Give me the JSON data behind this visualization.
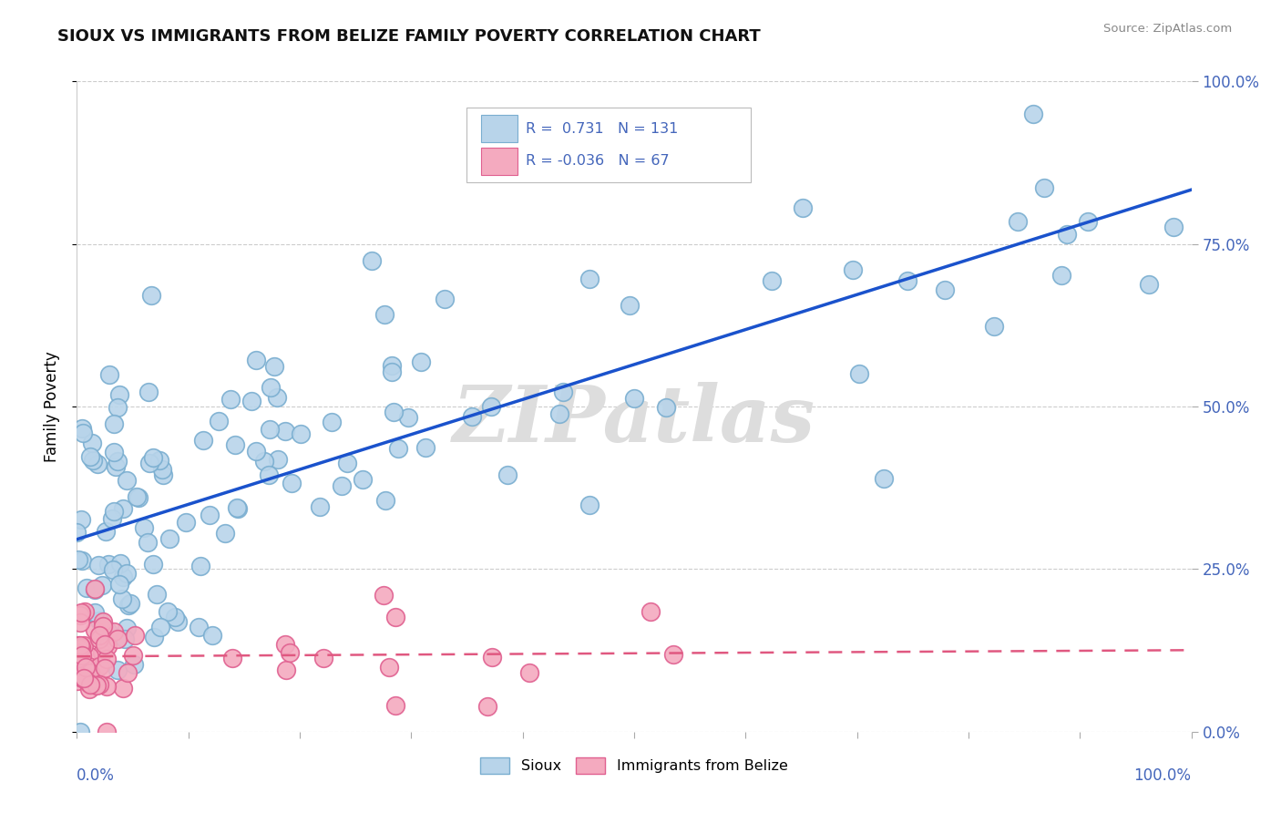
{
  "title": "SIOUX VS IMMIGRANTS FROM BELIZE FAMILY POVERTY CORRELATION CHART",
  "source": "Source: ZipAtlas.com",
  "ylabel": "Family Poverty",
  "sioux_R": 0.731,
  "sioux_N": 131,
  "belize_R": -0.036,
  "belize_N": 67,
  "sioux_color": "#b8d4ea",
  "sioux_edge_color": "#7aaed0",
  "sioux_line_color": "#1a52cc",
  "belize_color": "#f4aabf",
  "belize_edge_color": "#e06090",
  "belize_line_color": "#e05880",
  "background_color": "#ffffff",
  "grid_color": "#cccccc",
  "ytick_color": "#4466bb",
  "xtick_color": "#4466bb",
  "title_color": "#111111",
  "source_color": "#888888",
  "watermark_text": "ZIPatlas",
  "watermark_color": "#dddddd",
  "legend_border_color": "#bbbbbb"
}
